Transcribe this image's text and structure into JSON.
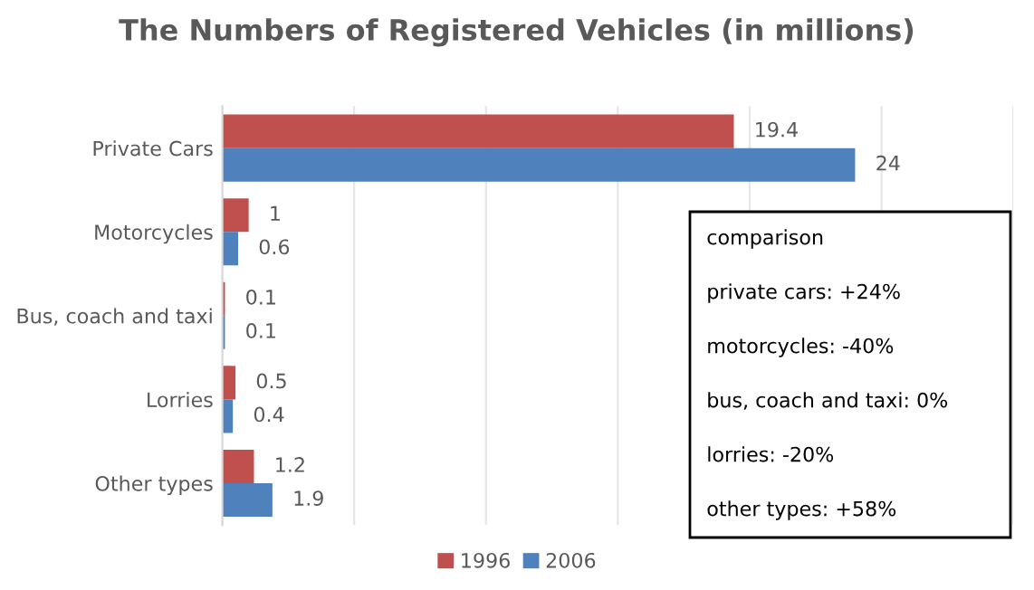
{
  "chart_data": {
    "type": "bar",
    "orientation": "horizontal",
    "title": "The Numbers of Registered Vehicles (in millions)",
    "categories": [
      "Private Cars",
      "Motorcycles",
      "Bus, coach and taxi",
      "Lorries",
      "Other types"
    ],
    "series": [
      {
        "name": "1996",
        "color": "#c0504d",
        "values": [
          19.4,
          1,
          0.1,
          0.5,
          1.2
        ]
      },
      {
        "name": "2006",
        "color": "#4f81bd",
        "values": [
          24,
          0.6,
          0.1,
          0.4,
          1.9
        ]
      }
    ],
    "xlim": [
      0,
      30
    ],
    "xticks": [
      {
        "value": 0,
        "label": null
      },
      {
        "value": 5,
        "label": null
      },
      {
        "value": 10,
        "label": null
      },
      {
        "value": 15,
        "label": null
      },
      {
        "value": 20,
        "label": null
      },
      {
        "value": 25,
        "label": null
      },
      {
        "value": 30,
        "label": null
      }
    ],
    "tick_labels": "y",
    "grid": "x",
    "data_labels": true,
    "legend": "bottom",
    "annotations": [
      "comparison",
      "private cars: +24%",
      "motorcycles: -40%",
      "bus, coach and taxi: 0%",
      "lorries: -20%",
      "other types: +58%"
    ]
  }
}
